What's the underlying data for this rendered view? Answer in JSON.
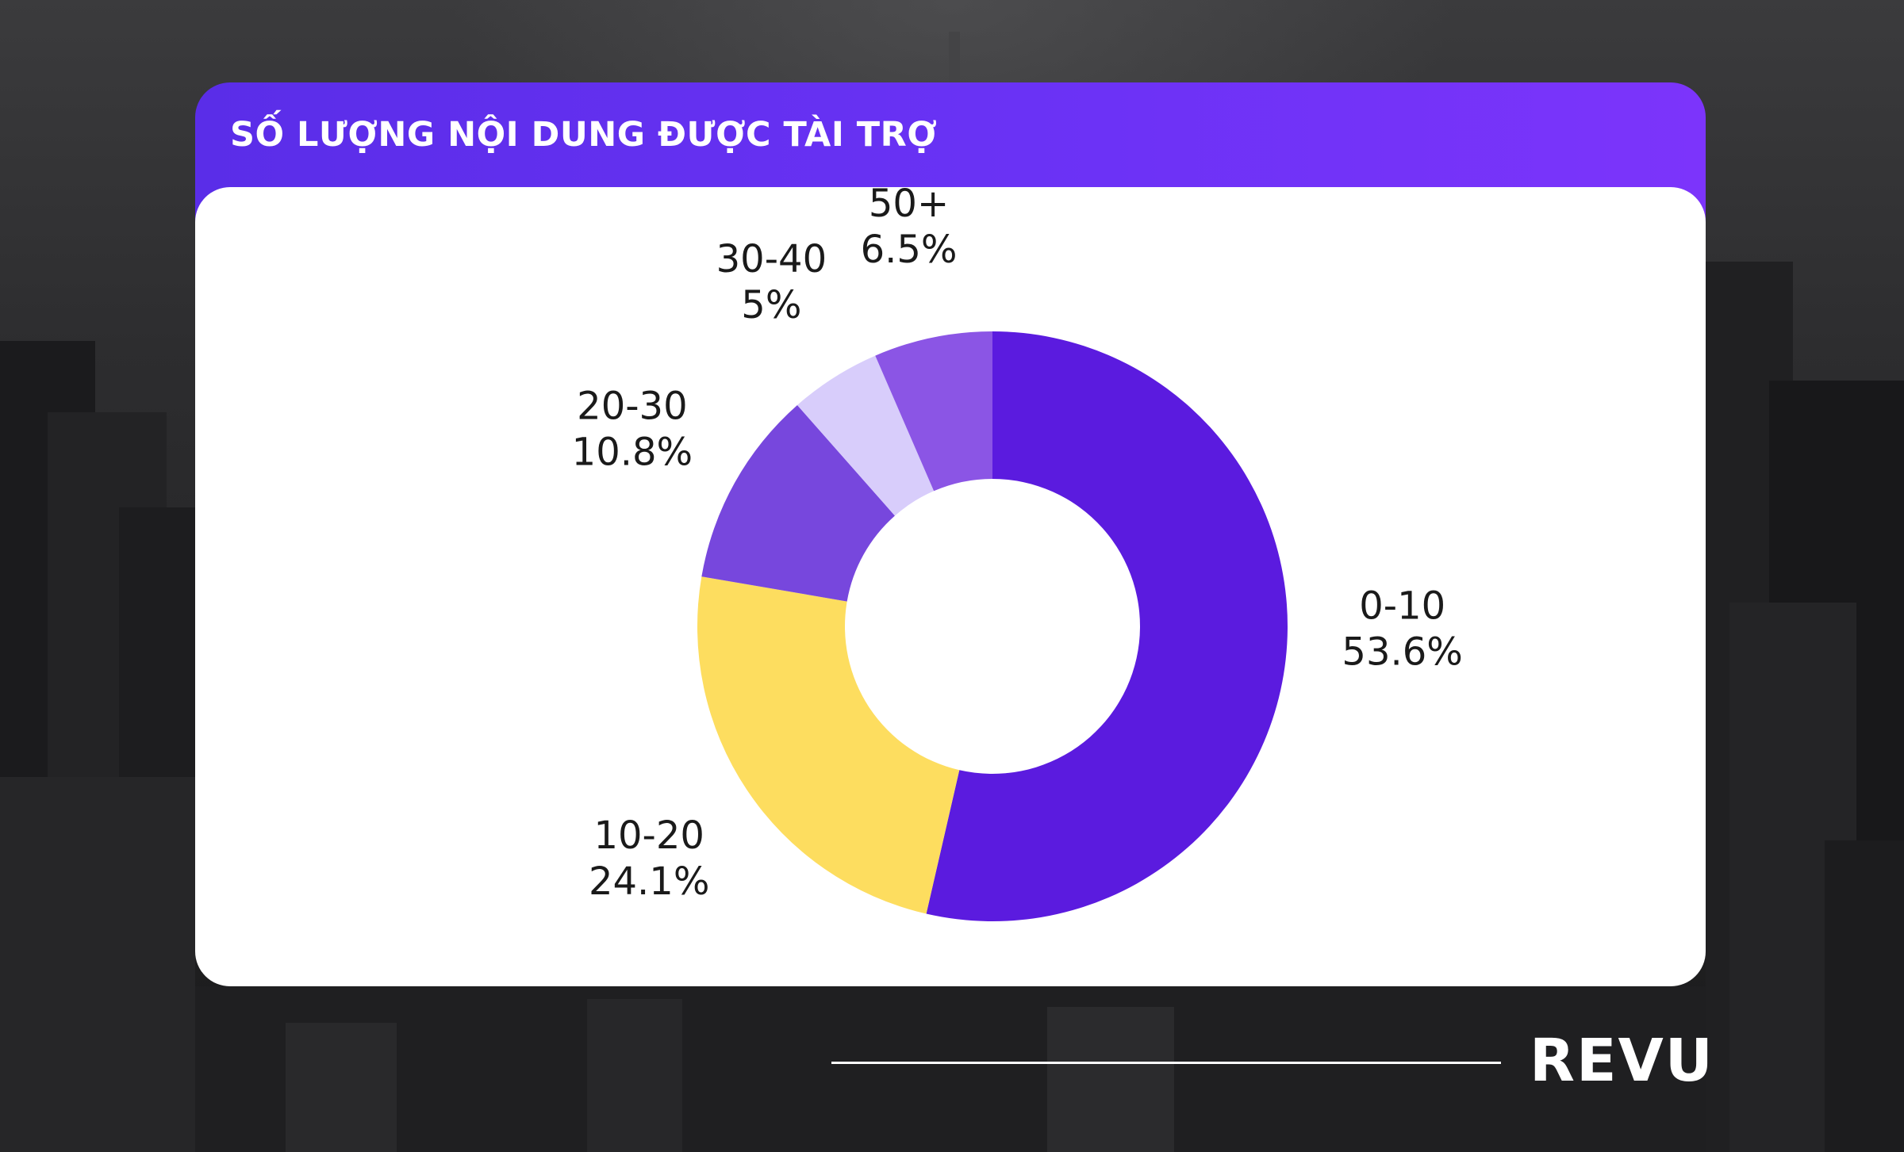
{
  "page": {
    "title": "SỐ LƯỢNG NỘI DUNG ĐƯỢC TÀI TRỢ",
    "brand": "REVU"
  },
  "colors": {
    "header_start": "#5a2de8",
    "header_end": "#7c34fb",
    "card_background": "#ffffff"
  },
  "chart_data": {
    "type": "pie",
    "variant": "donut",
    "title": "SỐ LƯỢNG NỘI DUNG ĐƯỢC TÀI TRỢ",
    "start_angle": "12 o'clock",
    "direction": "clockwise",
    "slices": [
      {
        "label": "0-10",
        "value": 53.6,
        "value_label": "53.6%",
        "color": "#5b1bdf"
      },
      {
        "label": "10-20",
        "value": 24.1,
        "value_label": "24.1%",
        "color": "#fddd5f"
      },
      {
        "label": "20-30",
        "value": 10.8,
        "value_label": "10.8%",
        "color": "#7747dd"
      },
      {
        "label": "30-40",
        "value": 5,
        "value_label": "5%",
        "color": "#d8cdfb"
      },
      {
        "label": "50+",
        "value": 6.5,
        "value_label": "6.5%",
        "color": "#8b55e5"
      }
    ]
  }
}
